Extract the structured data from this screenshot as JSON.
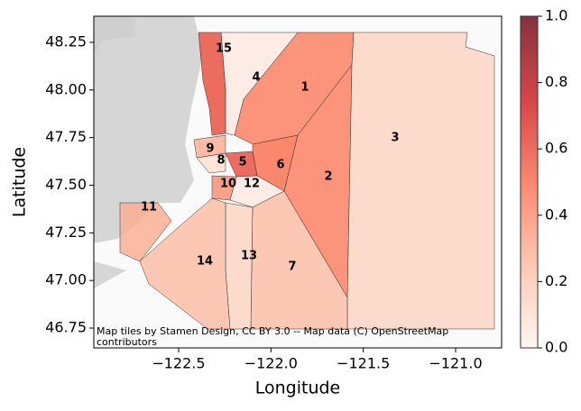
{
  "chart_data": {
    "type": "choropleth",
    "xlabel": "Longitude",
    "ylabel": "Latitude",
    "xlim": [
      -122.959,
      -120.751
    ],
    "ylim": [
      46.646,
      48.387
    ],
    "xticks": [
      {
        "value": -122.5,
        "label": "−122.5"
      },
      {
        "value": -122.0,
        "label": "−122.0"
      },
      {
        "value": -121.5,
        "label": "−121.5"
      },
      {
        "value": -121.0,
        "label": "−121.0"
      }
    ],
    "yticks": [
      {
        "value": 46.75,
        "label": "46.75"
      },
      {
        "value": 47.0,
        "label": "47.00"
      },
      {
        "value": 47.25,
        "label": "47.25"
      },
      {
        "value": 47.5,
        "label": "47.50"
      },
      {
        "value": 47.75,
        "label": "47.75"
      },
      {
        "value": 48.0,
        "label": "48.00"
      },
      {
        "value": 48.25,
        "label": "48.25"
      }
    ],
    "colormap": "Reds",
    "clim": [
      0,
      1
    ],
    "cticks": [
      {
        "value": 0,
        "label": "0.0"
      },
      {
        "value": 0.2,
        "label": "0.2"
      },
      {
        "value": 0.4,
        "label": "0.4"
      },
      {
        "value": 0.6,
        "label": "0.6"
      },
      {
        "value": 0.8,
        "label": "0.8"
      },
      {
        "value": 1,
        "label": "1.0"
      }
    ],
    "regions": [
      {
        "label": "1",
        "value": 0.45
      },
      {
        "label": "2",
        "value": 0.45
      },
      {
        "label": "3",
        "value": 0.15
      },
      {
        "label": "4",
        "value": 0.05
      },
      {
        "label": "5",
        "value": 0.6
      },
      {
        "label": "6",
        "value": 0.5
      },
      {
        "label": "7",
        "value": 0.25
      },
      {
        "label": "8",
        "value": 0.1
      },
      {
        "label": "9",
        "value": 0.3
      },
      {
        "label": "10",
        "value": 0.4
      },
      {
        "label": "11",
        "value": 0.3
      },
      {
        "label": "12",
        "value": 0.05
      },
      {
        "label": "13",
        "value": 0.15
      },
      {
        "label": "14",
        "value": 0.25
      },
      {
        "label": "15",
        "value": 0.6
      }
    ],
    "attribution": [
      "Map tiles by Stamen Design, CC BY 3.0 -- Map data (C) OpenStreetMap",
      "contributors"
    ]
  }
}
